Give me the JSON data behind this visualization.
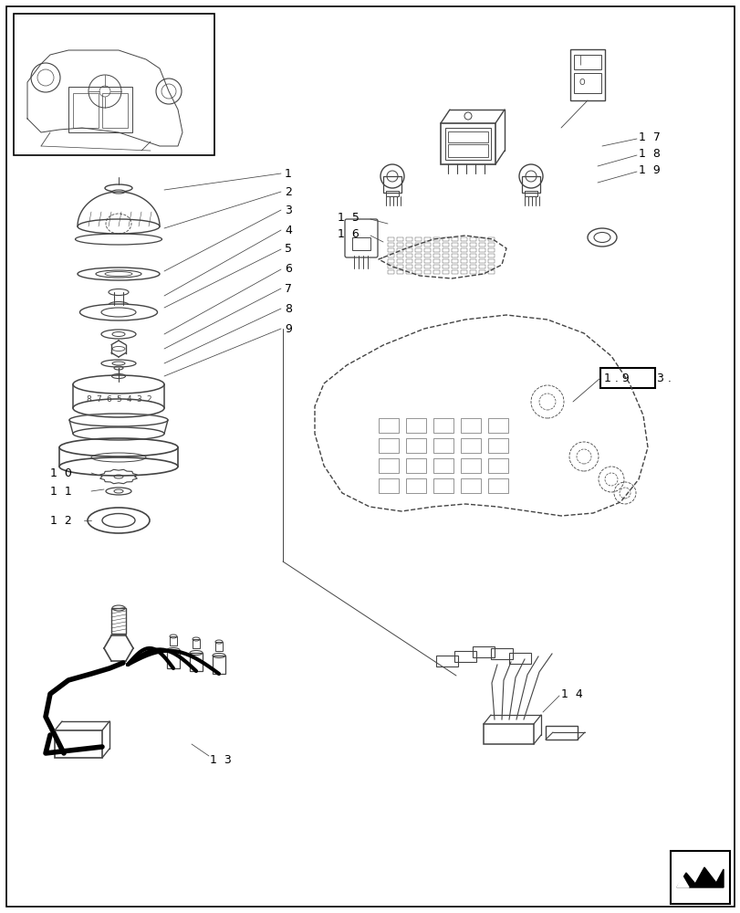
{
  "bg_color": "#ffffff",
  "border_color": "#000000",
  "line_color": "#444444",
  "text_color": "#000000",
  "ref_box_text": "1 . 9",
  "ref_box_text2": "3 .",
  "figsize": [
    8.12,
    10.0
  ],
  "dpi": 100
}
